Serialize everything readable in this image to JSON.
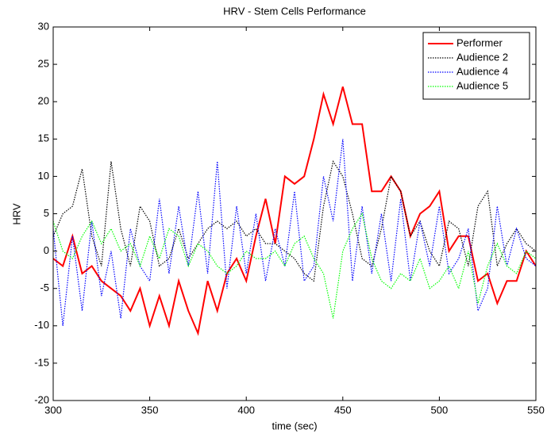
{
  "chart_data": {
    "type": "line",
    "title": "HRV - Stem Cells Performance",
    "xlabel": "time (sec)",
    "ylabel": "HRV",
    "x": [
      300,
      305,
      310,
      315,
      320,
      325,
      330,
      335,
      340,
      345,
      350,
      355,
      360,
      365,
      370,
      375,
      380,
      385,
      390,
      395,
      400,
      405,
      410,
      415,
      420,
      425,
      430,
      435,
      440,
      445,
      450,
      455,
      460,
      465,
      470,
      475,
      480,
      485,
      490,
      495,
      500,
      505,
      510,
      515,
      520,
      525,
      530,
      535,
      540,
      545,
      550
    ],
    "series": [
      {
        "name": "Performer",
        "color": "#ff0000",
        "style": "solid",
        "values": [
          -1,
          -2,
          2,
          -3,
          -2,
          -4,
          -5,
          -6,
          -8,
          -5,
          -10,
          -6,
          -10,
          -4,
          -8,
          -11,
          -4,
          -8,
          -3,
          -1,
          -4,
          2,
          7,
          1,
          10,
          9,
          10,
          15,
          21,
          17,
          22,
          17,
          17,
          8,
          8,
          10,
          8,
          2,
          5,
          6,
          8,
          0,
          2,
          2,
          -4,
          -3,
          -7,
          -4,
          -4,
          0,
          -2
        ]
      },
      {
        "name": "Audience 2",
        "color": "#000000",
        "style": "dotted",
        "values": [
          2,
          5,
          6,
          11,
          2,
          -2,
          12,
          3,
          -2,
          6,
          4,
          -2,
          -1,
          3,
          -1,
          1,
          3,
          4,
          3,
          4,
          2,
          3,
          1,
          1,
          0,
          -1,
          -3,
          -4,
          6,
          12,
          10,
          5,
          -1,
          -2,
          3,
          10,
          8,
          2,
          4,
          0,
          -2,
          4,
          3,
          -2,
          6,
          8,
          -2,
          1,
          3,
          1,
          0
        ]
      },
      {
        "name": "Audience 4",
        "color": "#0000ff",
        "style": "dotted",
        "values": [
          3,
          -10,
          2,
          -8,
          4,
          -6,
          0,
          -9,
          3,
          -2,
          -4,
          7,
          -3,
          6,
          -2,
          8,
          -3,
          12,
          -5,
          6,
          -3,
          5,
          -4,
          3,
          -2,
          8,
          -4,
          -2,
          10,
          4,
          15,
          -4,
          6,
          -3,
          5,
          -4,
          7,
          -4,
          4,
          -2,
          6,
          -3,
          -1,
          3,
          -8,
          -5,
          6,
          -2,
          3,
          -1,
          -2
        ]
      },
      {
        "name": "Audience 5",
        "color": "#00ff00",
        "style": "dotted",
        "values": [
          4,
          0,
          -1,
          2,
          4,
          1,
          3,
          0,
          1,
          -2,
          2,
          -1,
          3,
          2,
          -2,
          1,
          0,
          -2,
          -3,
          -2,
          0,
          -1,
          -1,
          0,
          -2,
          1,
          2,
          -1,
          -3,
          -9,
          0,
          3,
          5,
          -1,
          -4,
          -5,
          -3,
          -4,
          -1,
          -5,
          -4,
          -2,
          -5,
          0,
          -7,
          -2,
          1,
          -2,
          -3,
          0,
          -1
        ]
      }
    ],
    "xlim": [
      300,
      550
    ],
    "ylim": [
      -20,
      30
    ],
    "xticks": [
      300,
      350,
      400,
      450,
      500,
      550
    ],
    "yticks": [
      -20,
      -15,
      -10,
      -5,
      0,
      5,
      10,
      15,
      20,
      25,
      30
    ],
    "grid": false,
    "legend": "top-right"
  }
}
